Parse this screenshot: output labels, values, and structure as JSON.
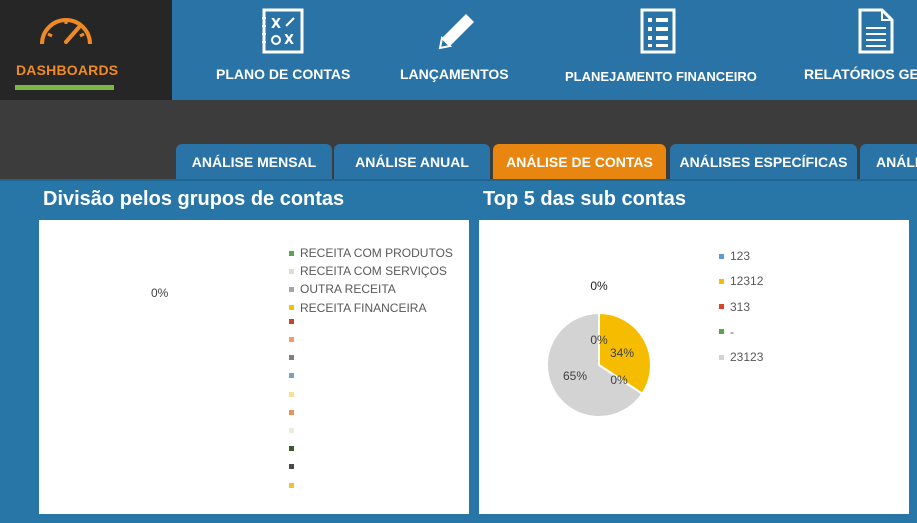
{
  "nav": {
    "dashboards": "DASHBOARDS",
    "plano": "PLANO DE CONTAS",
    "lancamentos": "LANÇAMENTOS",
    "planejamento": "PLANEJAMENTO FINANCEIRO",
    "relatorios": "RELATÓRIOS GE"
  },
  "tabs": {
    "mensal": "ANÁLISE MENSAL",
    "anual": "ANÁLISE ANUAL",
    "contas": "ANÁLISE DE CONTAS",
    "especificas": "ANÁLISES ESPECÍFICAS",
    "more": "ANÁLI"
  },
  "panels": {
    "left_title": "Divisão pelos grupos de contas",
    "right_title": "Top 5 das sub contas"
  },
  "chart_data": [
    {
      "type": "pie",
      "title": "Divisão pelos grupos de contas",
      "center_label": "0%",
      "legend": [
        {
          "name": "RECEITA COM PRODUTOS",
          "color": "#5aa454"
        },
        {
          "name": "RECEITA COM SERVIÇOS",
          "color": "#d9e3c8"
        },
        {
          "name": "OUTRA RECEITA",
          "color": "#a5a5a5"
        },
        {
          "name": "RECEITA FINANCEIRA",
          "color": "#f4c300"
        },
        {
          "name": "",
          "color": "#c9422d"
        },
        {
          "name": "",
          "color": "#ef9c6e"
        },
        {
          "name": "",
          "color": "#7f7f7f"
        },
        {
          "name": "",
          "color": "#7f9fbf"
        },
        {
          "name": "",
          "color": "#f7e08e"
        },
        {
          "name": "",
          "color": "#e8915a"
        },
        {
          "name": "",
          "color": "#e6edd9"
        },
        {
          "name": "",
          "color": "#3b5b2a"
        },
        {
          "name": "",
          "color": "#4a4a4a"
        },
        {
          "name": "",
          "color": "#f2c12e"
        }
      ],
      "values": []
    },
    {
      "type": "pie",
      "title": "Top 5 das sub contas",
      "categories": [
        "123",
        "12312",
        "313",
        "-",
        "23123"
      ],
      "colors": [
        "#5b9bd5",
        "#f6bd00",
        "#d9432c",
        "#5aa454",
        "#d3d3d3"
      ],
      "values": [
        0,
        34,
        0,
        0,
        65
      ],
      "labels": [
        "0%",
        "34%",
        "0%",
        "0%",
        "65%"
      ]
    }
  ]
}
